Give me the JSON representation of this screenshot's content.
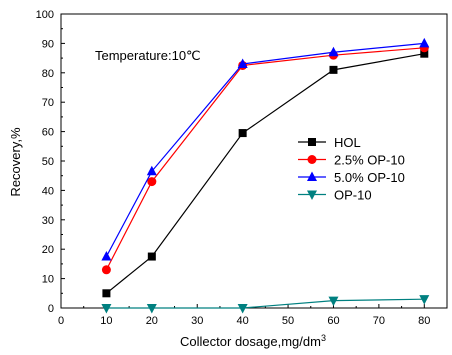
{
  "chart_data": {
    "type": "line",
    "title": "",
    "xlabel": "Collector dosage,mg/dm",
    "xlabel_superscript": "3",
    "ylabel": "Recovery,%",
    "xlim": [
      0,
      85
    ],
    "ylim": [
      0,
      100
    ],
    "x_ticks": [
      0,
      10,
      20,
      30,
      40,
      50,
      60,
      70,
      80
    ],
    "y_ticks": [
      0,
      10,
      20,
      30,
      40,
      50,
      60,
      70,
      80,
      90,
      100
    ],
    "x": [
      10,
      20,
      40,
      60,
      80
    ],
    "grid": false,
    "legend_position": "right",
    "annotation": "Temperature:10℃",
    "series": [
      {
        "name": "HOL",
        "color": "#000000",
        "marker": "square",
        "values": [
          5,
          17.5,
          59.5,
          81,
          86.5
        ]
      },
      {
        "name": "2.5% OP-10",
        "color": "#ff0000",
        "marker": "circle",
        "values": [
          13,
          43,
          82.5,
          86,
          88.5
        ]
      },
      {
        "name": "5.0% OP-10",
        "color": "#0000ff",
        "marker": "triangle-up",
        "values": [
          17.5,
          46.5,
          83,
          87,
          90
        ]
      },
      {
        "name": "OP-10",
        "color": "#008080",
        "marker": "triangle-down",
        "values": [
          0,
          0,
          0,
          2.5,
          3
        ]
      }
    ]
  }
}
